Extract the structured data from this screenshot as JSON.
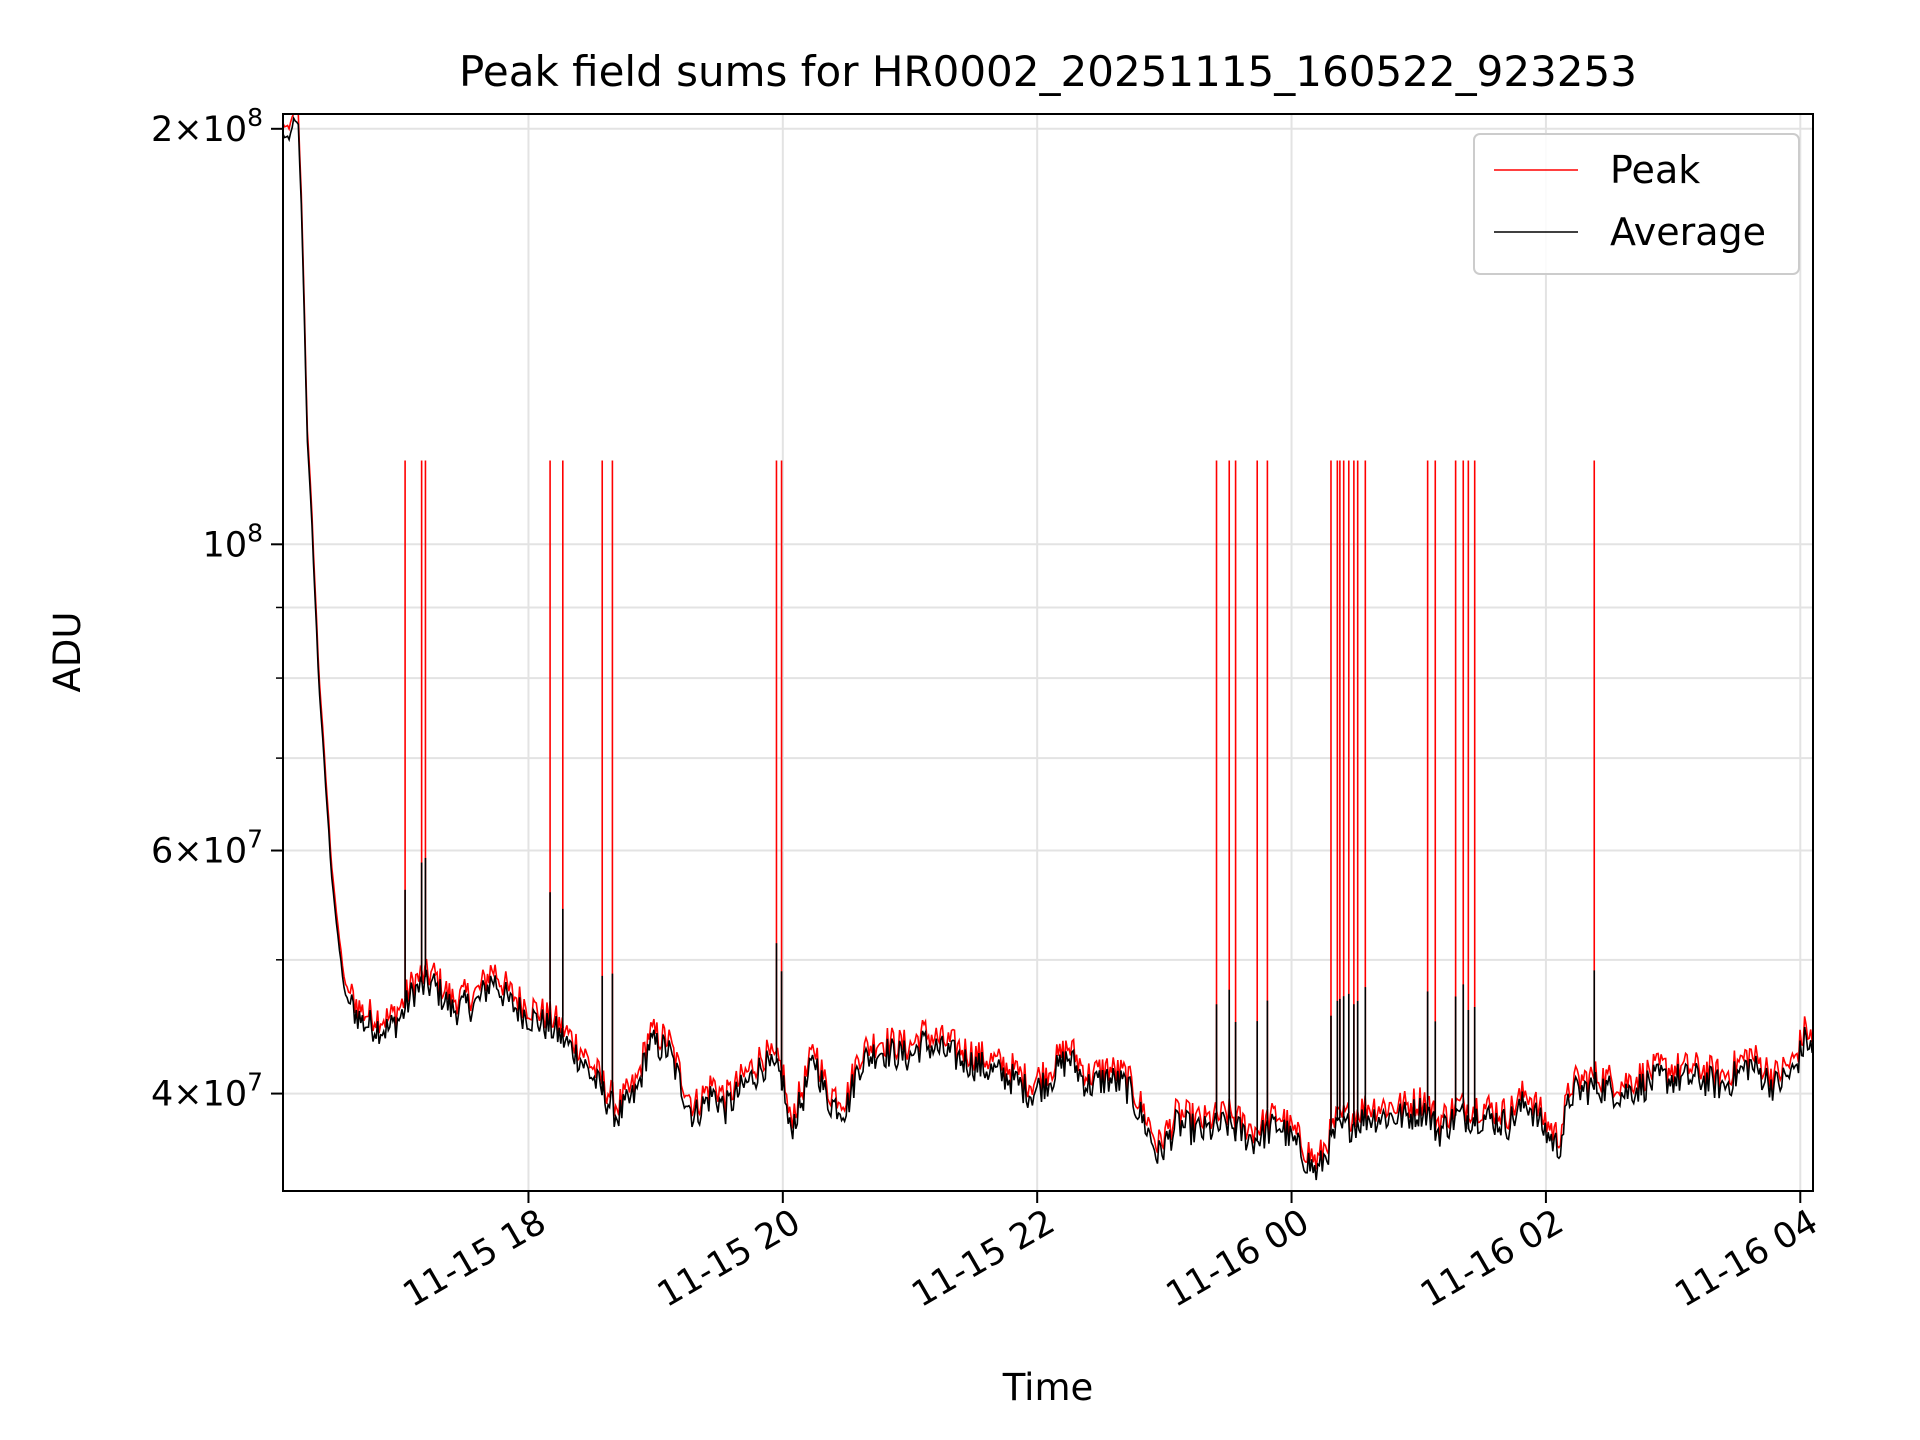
{
  "chart_data": {
    "type": "line",
    "title": "Peak field sums for HR0002_20251115_160522_923253",
    "xlabel": "Time",
    "ylabel": "ADU",
    "yscale": "log",
    "xlim_hours": [
      16.07,
      28.1
    ],
    "ylim": [
      34000000,
      205000000
    ],
    "x_tick_hours": [
      18,
      20,
      22,
      24,
      26,
      28
    ],
    "x_ticks": [
      "11-15 18",
      "11-15 20",
      "11-15 22",
      "11-16 00",
      "11-16 02",
      "11-16 04"
    ],
    "y_tick_values": [
      40000000,
      60000000,
      100000000,
      200000000
    ],
    "y_ticks": [
      {
        "mantissa": "4",
        "times": "×",
        "base": "10",
        "exp": "7"
      },
      {
        "mantissa": "6",
        "times": "×",
        "base": "10",
        "exp": "7"
      },
      {
        "mantissa": "",
        "times": "",
        "base": "10",
        "exp": "8"
      },
      {
        "mantissa": "2",
        "times": "×",
        "base": "10",
        "exp": "8"
      }
    ],
    "y_minor_values": [
      50000000,
      70000000,
      80000000,
      90000000
    ],
    "grid": true,
    "legend": {
      "position": "top-right",
      "entries": [
        {
          "label": "Peak",
          "color": "#ff0000"
        },
        {
          "label": "Average",
          "color": "#000000"
        }
      ]
    },
    "series": [
      {
        "name": "Peak",
        "color": "#ff0000",
        "spike_hours": [
          17.03,
          17.16,
          17.19,
          18.17,
          18.27,
          18.58,
          18.66,
          19.95,
          19.99,
          23.41,
          23.51,
          23.56,
          23.73,
          23.81,
          24.31,
          24.36,
          24.38,
          24.41,
          24.45,
          24.49,
          24.52,
          24.58,
          25.07,
          25.13,
          25.29,
          25.35,
          25.39,
          25.44,
          26.38
        ],
        "spike_value": 115000000
      },
      {
        "name": "Average",
        "color": "#000000",
        "points": [
          [
            16.07,
            198000000
          ],
          [
            16.12,
            196000000
          ],
          [
            16.15,
            203000000
          ],
          [
            16.19,
            201000000
          ],
          [
            16.22,
            170000000
          ],
          [
            16.26,
            120000000
          ],
          [
            16.3,
            102000000
          ],
          [
            16.35,
            80000000
          ],
          [
            16.4,
            68000000
          ],
          [
            16.45,
            58000000
          ],
          [
            16.5,
            52000000
          ],
          [
            16.56,
            47000000
          ],
          [
            16.7,
            45000000
          ],
          [
            16.9,
            44500000
          ],
          [
            17.0,
            45500000
          ],
          [
            17.1,
            47500000
          ],
          [
            17.25,
            48000000
          ],
          [
            17.4,
            46000000
          ],
          [
            17.6,
            46500000
          ],
          [
            17.72,
            48500000
          ],
          [
            17.85,
            46500000
          ],
          [
            18.0,
            45500000
          ],
          [
            18.2,
            44500000
          ],
          [
            18.4,
            42500000
          ],
          [
            18.55,
            40500000
          ],
          [
            18.7,
            38500000
          ],
          [
            18.85,
            40000000
          ],
          [
            18.95,
            43500000
          ],
          [
            19.1,
            43000000
          ],
          [
            19.2,
            40500000
          ],
          [
            19.3,
            38500000
          ],
          [
            19.45,
            40000000
          ],
          [
            19.55,
            39000000
          ],
          [
            19.7,
            40500000
          ],
          [
            19.85,
            42000000
          ],
          [
            20.0,
            41000000
          ],
          [
            20.05,
            37500000
          ],
          [
            20.15,
            39500000
          ],
          [
            20.25,
            42500000
          ],
          [
            20.35,
            39500000
          ],
          [
            20.5,
            39000000
          ],
          [
            20.6,
            42000000
          ],
          [
            20.75,
            43000000
          ],
          [
            21.0,
            42500000
          ],
          [
            21.1,
            43500000
          ],
          [
            21.5,
            42000000
          ],
          [
            21.8,
            41000000
          ],
          [
            21.95,
            40000000
          ],
          [
            22.1,
            41000000
          ],
          [
            22.25,
            42500000
          ],
          [
            22.4,
            40500000
          ],
          [
            22.55,
            41000000
          ],
          [
            22.7,
            40500000
          ],
          [
            22.85,
            38000000
          ],
          [
            22.95,
            36000000
          ],
          [
            23.1,
            38000000
          ],
          [
            23.3,
            37500000
          ],
          [
            23.5,
            38000000
          ],
          [
            23.7,
            37000000
          ],
          [
            23.9,
            38000000
          ],
          [
            24.05,
            36500000
          ],
          [
            24.2,
            35000000
          ],
          [
            24.35,
            37500000
          ],
          [
            24.6,
            38500000
          ],
          [
            24.9,
            38500000
          ],
          [
            25.05,
            39000000
          ],
          [
            25.15,
            37500000
          ],
          [
            25.3,
            38500000
          ],
          [
            25.5,
            38500000
          ],
          [
            25.7,
            38000000
          ],
          [
            25.85,
            39500000
          ],
          [
            26.0,
            37500000
          ],
          [
            26.1,
            36500000
          ],
          [
            26.2,
            40000000
          ],
          [
            26.4,
            40500000
          ],
          [
            26.6,
            40000000
          ],
          [
            26.9,
            41000000
          ],
          [
            27.2,
            41000000
          ],
          [
            27.4,
            40500000
          ],
          [
            27.6,
            42000000
          ],
          [
            27.8,
            40500000
          ],
          [
            27.95,
            41500000
          ],
          [
            28.05,
            44000000
          ],
          [
            28.1,
            42500000
          ]
        ]
      }
    ]
  }
}
